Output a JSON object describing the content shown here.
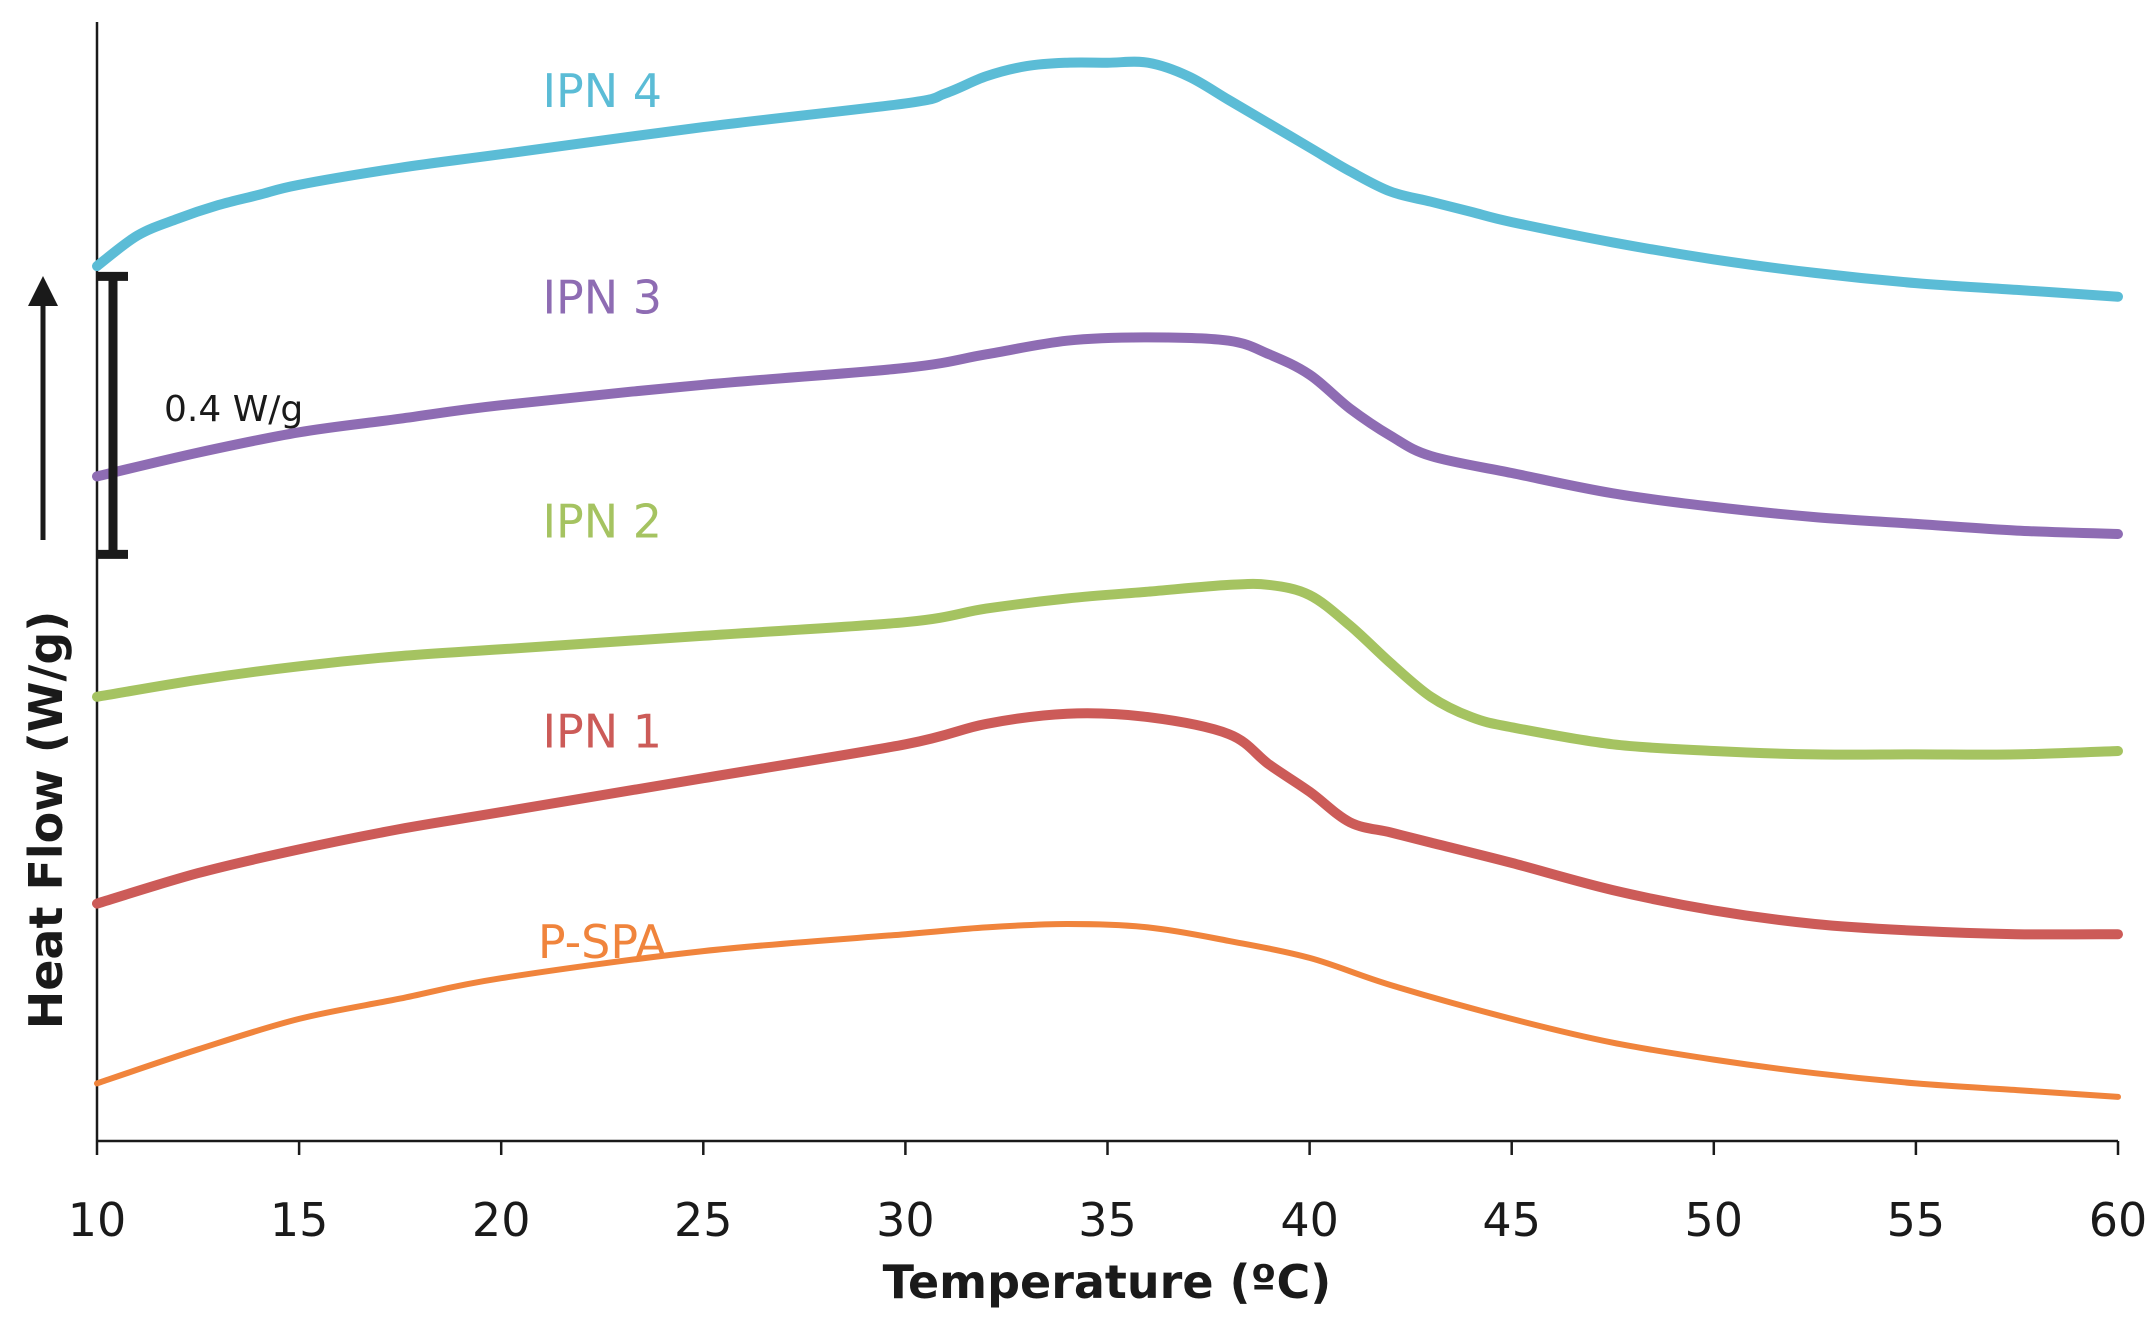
{
  "chart_data": {
    "type": "line",
    "title": "",
    "xlabel": "Temperature (ºC)",
    "ylabel": "Heat Flow (W/g)",
    "xlim": [
      10,
      60
    ],
    "xticks": [
      10,
      15,
      20,
      25,
      30,
      35,
      40,
      45,
      50,
      55,
      60
    ],
    "xtick_labels": [
      "10",
      "15",
      "20",
      "25",
      "30",
      "35",
      "40",
      "45",
      "50",
      "55",
      "60"
    ],
    "y_unit_note": "relative heat flow in W/g; curves vertically offset, no y tick values printed",
    "ylim": [
      0,
      3.3
    ],
    "grid": false,
    "legend": "inline labels above each curve",
    "scale_bar": {
      "label": "0.4 W/g",
      "value": 0.4
    },
    "series": [
      {
        "name": "IPN 4",
        "color": "#5bbcd6",
        "stroke": "thick",
        "label": "IPN 4",
        "label_at": {
          "x": 22.5,
          "y": 3.05
        },
        "x": [
          10,
          11,
          12,
          13,
          14,
          15,
          17.5,
          20,
          25,
          30,
          31,
          32,
          33,
          34,
          35,
          36,
          37,
          38,
          39,
          40,
          41,
          42,
          43,
          44,
          45,
          47.5,
          50,
          52.5,
          55,
          57.5,
          60
        ],
        "y": [
          2.58,
          2.67,
          2.72,
          2.76,
          2.79,
          2.82,
          2.87,
          2.91,
          2.99,
          3.06,
          3.09,
          3.14,
          3.17,
          3.18,
          3.18,
          3.18,
          3.14,
          3.07,
          3.0,
          2.93,
          2.86,
          2.8,
          2.77,
          2.74,
          2.71,
          2.65,
          2.6,
          2.56,
          2.53,
          2.51,
          2.49
        ]
      },
      {
        "name": "IPN 3",
        "color": "#8e6cb3",
        "stroke": "thick",
        "label": "IPN 3",
        "label_at": {
          "x": 22.5,
          "y": 2.44
        },
        "x": [
          10,
          12.5,
          15,
          17.5,
          20,
          25,
          30,
          32,
          34,
          36,
          38,
          39,
          40,
          41,
          42,
          43,
          45,
          47.5,
          50,
          52.5,
          55,
          57.5,
          60
        ],
        "y": [
          1.96,
          2.03,
          2.09,
          2.13,
          2.17,
          2.23,
          2.28,
          2.32,
          2.36,
          2.37,
          2.36,
          2.32,
          2.26,
          2.16,
          2.08,
          2.02,
          1.97,
          1.91,
          1.87,
          1.84,
          1.82,
          1.8,
          1.79
        ]
      },
      {
        "name": "IPN 2",
        "color": "#a5c361",
        "stroke": "thick",
        "label": "IPN 2",
        "label_at": {
          "x": 22.5,
          "y": 1.78
        },
        "x": [
          10,
          12.5,
          15,
          17.5,
          20,
          25,
          30,
          32,
          34,
          36,
          38,
          39,
          40,
          41,
          42,
          43,
          44,
          45,
          47.5,
          50,
          52.5,
          55,
          57.5,
          60
        ],
        "y": [
          1.31,
          1.36,
          1.4,
          1.43,
          1.45,
          1.49,
          1.53,
          1.57,
          1.6,
          1.62,
          1.64,
          1.64,
          1.61,
          1.52,
          1.41,
          1.31,
          1.25,
          1.22,
          1.17,
          1.15,
          1.14,
          1.14,
          1.14,
          1.15
        ]
      },
      {
        "name": "IPN 1",
        "color": "#cc5b58",
        "stroke": "thick",
        "label": "IPN 1",
        "label_at": {
          "x": 22.5,
          "y": 1.16
        },
        "x": [
          10,
          12.5,
          15,
          17.5,
          20,
          25,
          30,
          32,
          34,
          36,
          38,
          39,
          40,
          41,
          42,
          43,
          45,
          47.5,
          50,
          52.5,
          55,
          57.5,
          60
        ],
        "y": [
          0.7,
          0.79,
          0.86,
          0.92,
          0.97,
          1.07,
          1.17,
          1.23,
          1.26,
          1.25,
          1.2,
          1.11,
          1.03,
          0.94,
          0.91,
          0.88,
          0.82,
          0.74,
          0.68,
          0.64,
          0.62,
          0.61,
          0.61
        ]
      },
      {
        "name": "P-SPA",
        "color": "#f0843c",
        "stroke": "normal",
        "label": "P-SPA",
        "label_at": {
          "x": 22.5,
          "y": 0.54
        },
        "x": [
          10,
          12.5,
          15,
          17.5,
          20,
          25,
          30,
          32,
          34,
          36,
          38,
          40,
          42,
          45,
          47.5,
          50,
          52.5,
          55,
          57.5,
          60
        ],
        "y": [
          0.17,
          0.27,
          0.36,
          0.42,
          0.48,
          0.56,
          0.61,
          0.63,
          0.64,
          0.63,
          0.59,
          0.54,
          0.46,
          0.36,
          0.29,
          0.24,
          0.2,
          0.17,
          0.15,
          0.13
        ]
      }
    ]
  }
}
